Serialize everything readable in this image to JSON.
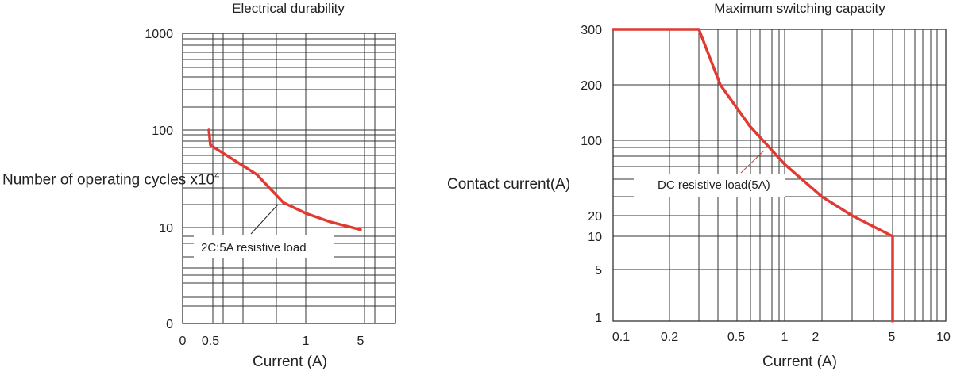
{
  "chart_data": [
    {
      "type": "line",
      "title": "Electrical durability",
      "xlabel": "Current (A)",
      "ylabel": "Number of operating cycles x10",
      "ylabel_superscript": "4",
      "x_ticks": [
        "0",
        "0.5",
        "1",
        "5"
      ],
      "y_ticks": [
        "1000",
        "100",
        "10",
        "0"
      ],
      "y_scale": "log",
      "grid": true,
      "annotation": "2C:5A  resistive load",
      "series_color": "#e03a32",
      "series": [
        {
          "x": [
            0.4,
            0.5,
            0.7,
            0.85,
            1,
            2,
            5
          ],
          "y": [
            100,
            70,
            35,
            18,
            14,
            11.5,
            9.5
          ]
        }
      ]
    },
    {
      "type": "line",
      "title": "Maximum switching capacity",
      "xlabel": "Current (A)",
      "ylabel": "Contact current(A)",
      "x_ticks": [
        "0.1",
        "0.2",
        "0.5",
        "1",
        "2",
        "5",
        "10"
      ],
      "y_ticks": [
        "300",
        "200",
        "100",
        "20",
        "10",
        "5",
        "1"
      ],
      "x_scale": "log",
      "y_scale": "log",
      "grid": true,
      "annotation": "DC resistive load(5A)",
      "series_color": "#e03a32",
      "series": [
        {
          "x": [
            0.1,
            0.3,
            0.4,
            0.6,
            1,
            2,
            3,
            5,
            5
          ],
          "y": [
            300,
            300,
            200,
            120,
            60,
            30,
            20,
            10,
            1
          ]
        }
      ]
    }
  ]
}
